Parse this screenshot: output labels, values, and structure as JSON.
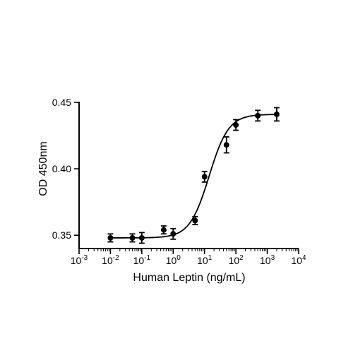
{
  "chart_data": {
    "type": "scatter",
    "title": "",
    "xlabel": "Human Leptin (ng/mL)",
    "ylabel": "OD 450nm",
    "xscale": "log",
    "xlim": [
      0.001,
      10000
    ],
    "ylim": [
      0.34,
      0.45
    ],
    "x_ticks": [
      {
        "base": "10",
        "exp": "-3"
      },
      {
        "base": "10",
        "exp": "-2"
      },
      {
        "base": "10",
        "exp": "-1"
      },
      {
        "base": "10",
        "exp": "0"
      },
      {
        "base": "10",
        "exp": "1"
      },
      {
        "base": "10",
        "exp": "2"
      },
      {
        "base": "10",
        "exp": "3"
      },
      {
        "base": "10",
        "exp": "4"
      }
    ],
    "y_ticks": [
      "0.35",
      "0.40",
      "0.45"
    ],
    "y_tick_values": [
      0.35,
      0.4,
      0.45
    ],
    "grid": false,
    "series": [
      {
        "points": [
          {
            "x": 0.01,
            "y": 0.348,
            "err": 0.003
          },
          {
            "x": 0.05,
            "y": 0.348,
            "err": 0.003
          },
          {
            "x": 0.1,
            "y": 0.348,
            "err": 0.004
          },
          {
            "x": 0.5,
            "y": 0.354,
            "err": 0.003
          },
          {
            "x": 1,
            "y": 0.351,
            "err": 0.004
          },
          {
            "x": 5,
            "y": 0.361,
            "err": 0.003
          },
          {
            "x": 10,
            "y": 0.394,
            "err": 0.004
          },
          {
            "x": 50,
            "y": 0.418,
            "err": 0.006
          },
          {
            "x": 100,
            "y": 0.433,
            "err": 0.004
          },
          {
            "x": 500,
            "y": 0.44,
            "err": 0.004
          },
          {
            "x": 2000,
            "y": 0.441,
            "err": 0.005
          }
        ]
      }
    ],
    "fit_curve": {
      "type": "4PL",
      "bottom": 0.348,
      "top": 0.441,
      "ec50": 14,
      "hill": 1.4
    }
  }
}
